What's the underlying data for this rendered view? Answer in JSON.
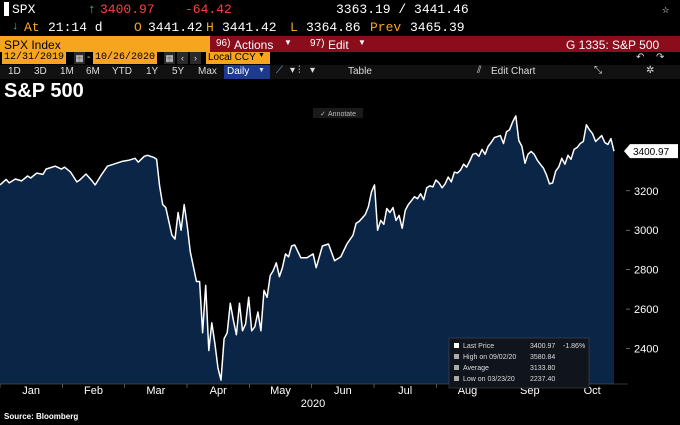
{
  "header": {
    "ticker": "SPX",
    "arrow": "↑",
    "last": "3400.97",
    "change": "-64.42",
    "range": "3363.19 / 3441.46",
    "at_label": "At",
    "time": "21:14 d",
    "o_label": "O",
    "open": "3441.42",
    "h_label": "H",
    "high": "3441.42",
    "l_label": "L",
    "low": "3364.86",
    "prev_label": "Prev",
    "prev": "3465.39"
  },
  "menubar": {
    "security": "SPX Index",
    "actions": "Actions",
    "actions_num": "96)",
    "edit": "Edit",
    "edit_num": "97)",
    "chart_label": "G 1335: S&P 500"
  },
  "dates": {
    "start": "12/31/2019",
    "end": "10/26/2020",
    "currency": "Local CCY"
  },
  "toolbar": {
    "periods": [
      "1D",
      "3D",
      "1M",
      "6M",
      "YTD",
      "1Y",
      "5Y",
      "Max"
    ],
    "frequency": "Daily",
    "table": "Table",
    "edit_chart": "Edit Chart"
  },
  "chart_title": "S&P 500",
  "annotate": "Annotate",
  "source": "Source: Bloomberg",
  "legend": {
    "rows": [
      {
        "label": "Last Price",
        "value": "3400.97",
        "extra": "-1.86%"
      },
      {
        "label": "High on 09/02/20",
        "value": "3580.84",
        "extra": ""
      },
      {
        "label": "Average",
        "value": "3133.80",
        "extra": ""
      },
      {
        "label": "Low on 03/23/20",
        "value": "2237.40",
        "extra": ""
      }
    ]
  },
  "colors": {
    "line": "#ffffff",
    "fill": "#0b2547",
    "background": "#000000",
    "menubar": "#8b0d1c",
    "accent": "#f7a51e"
  },
  "chart_data": {
    "type": "area",
    "title": "S&P 500",
    "xlabel": "2020",
    "ylabel": "",
    "ylim": [
      2220,
      3620
    ],
    "y_ticks": [
      2400,
      2600,
      2800,
      3000,
      3200
    ],
    "x_tick_labels": [
      "Jan",
      "Feb",
      "Mar",
      "Apr",
      "May",
      "Jun",
      "Jul",
      "Aug",
      "Sep",
      "Oct"
    ],
    "last_value_label": "3400.97",
    "grid": false,
    "legend_position": "bottom-right",
    "series": [
      {
        "name": "Last Price",
        "points": [
          [
            0,
            3230
          ],
          [
            2,
            3258
          ],
          [
            3,
            3240
          ],
          [
            5,
            3260
          ],
          [
            7,
            3250
          ],
          [
            9,
            3275
          ],
          [
            10,
            3265
          ],
          [
            12,
            3290
          ],
          [
            14,
            3283
          ],
          [
            15,
            3310
          ],
          [
            17,
            3320
          ],
          [
            18,
            3325
          ],
          [
            20,
            3310
          ],
          [
            21,
            3320
          ],
          [
            23,
            3295
          ],
          [
            25,
            3245
          ],
          [
            26,
            3255
          ],
          [
            28,
            3285
          ],
          [
            30,
            3250
          ],
          [
            31,
            3230
          ],
          [
            33,
            3280
          ],
          [
            35,
            3325
          ],
          [
            37,
            3335
          ],
          [
            39,
            3345
          ],
          [
            40,
            3350
          ],
          [
            42,
            3355
          ],
          [
            44,
            3365
          ],
          [
            45,
            3345
          ],
          [
            47,
            3375
          ],
          [
            48,
            3380
          ],
          [
            50,
            3370
          ],
          [
            51,
            3360
          ],
          [
            52,
            3225
          ],
          [
            53,
            3130
          ],
          [
            54,
            3115
          ],
          [
            56,
            2975
          ],
          [
            57,
            2955
          ],
          [
            58,
            3090
          ],
          [
            59,
            3000
          ],
          [
            60,
            3130
          ],
          [
            61,
            3020
          ],
          [
            62,
            2890
          ],
          [
            64,
            2740
          ],
          [
            65,
            2740
          ],
          [
            66,
            2480
          ],
          [
            67,
            2720
          ],
          [
            68,
            2390
          ],
          [
            69,
            2530
          ],
          [
            70,
            2425
          ],
          [
            71,
            2300
          ],
          [
            72,
            2240
          ],
          [
            73,
            2450
          ],
          [
            74,
            2480
          ],
          [
            75,
            2630
          ],
          [
            76,
            2545
          ],
          [
            77,
            2470
          ],
          [
            78,
            2630
          ],
          [
            79,
            2490
          ],
          [
            80,
            2525
          ],
          [
            81,
            2660
          ],
          [
            82,
            2490
          ],
          [
            83,
            2510
          ],
          [
            84,
            2585
          ],
          [
            85,
            2490
          ],
          [
            86,
            2695
          ],
          [
            87,
            2660
          ],
          [
            88,
            2770
          ],
          [
            89,
            2795
          ],
          [
            90,
            2835
          ],
          [
            91,
            2765
          ],
          [
            92,
            2810
          ],
          [
            93,
            2880
          ],
          [
            94,
            2865
          ],
          [
            95,
            2920
          ],
          [
            96,
            2925
          ],
          [
            98,
            2860
          ],
          [
            100,
            2860
          ],
          [
            102,
            2880
          ],
          [
            103,
            2810
          ],
          [
            105,
            2920
          ],
          [
            107,
            2930
          ],
          [
            109,
            2845
          ],
          [
            111,
            2865
          ],
          [
            113,
            2930
          ],
          [
            115,
            2975
          ],
          [
            116,
            3035
          ],
          [
            117,
            3045
          ],
          [
            119,
            3080
          ],
          [
            120,
            3120
          ],
          [
            121,
            3195
          ],
          [
            122,
            3230
          ],
          [
            123,
            3000
          ],
          [
            124,
            3050
          ],
          [
            125,
            3030
          ],
          [
            126,
            3110
          ],
          [
            127,
            3090
          ],
          [
            128,
            3115
          ],
          [
            129,
            3050
          ],
          [
            130,
            3075
          ],
          [
            131,
            3010
          ],
          [
            132,
            3100
          ],
          [
            133,
            3130
          ],
          [
            134,
            3150
          ],
          [
            135,
            3170
          ],
          [
            136,
            3160
          ],
          [
            137,
            3185
          ],
          [
            138,
            3155
          ],
          [
            139,
            3215
          ],
          [
            140,
            3225
          ],
          [
            141,
            3220
          ],
          [
            142,
            3255
          ],
          [
            143,
            3240
          ],
          [
            144,
            3215
          ],
          [
            145,
            3235
          ],
          [
            146,
            3270
          ],
          [
            147,
            3245
          ],
          [
            148,
            3295
          ],
          [
            149,
            3290
          ],
          [
            150,
            3305
          ],
          [
            151,
            3335
          ],
          [
            152,
            3320
          ],
          [
            153,
            3350
          ],
          [
            154,
            3385
          ],
          [
            155,
            3390
          ],
          [
            156,
            3375
          ],
          [
            157,
            3410
          ],
          [
            158,
            3385
          ],
          [
            159,
            3425
          ],
          [
            160,
            3445
          ],
          [
            161,
            3470
          ],
          [
            162,
            3475
          ],
          [
            163,
            3480
          ],
          [
            164,
            3440
          ],
          [
            165,
            3500
          ],
          [
            166,
            3510
          ],
          [
            167,
            3550
          ],
          [
            168,
            3580
          ],
          [
            169,
            3455
          ],
          [
            170,
            3425
          ],
          [
            171,
            3340
          ],
          [
            172,
            3385
          ],
          [
            173,
            3400
          ],
          [
            174,
            3385
          ],
          [
            175,
            3355
          ],
          [
            176,
            3335
          ],
          [
            177,
            3315
          ],
          [
            178,
            3280
          ],
          [
            179,
            3235
          ],
          [
            180,
            3240
          ],
          [
            181,
            3300
          ],
          [
            182,
            3320
          ],
          [
            183,
            3365
          ],
          [
            184,
            3335
          ],
          [
            185,
            3380
          ],
          [
            186,
            3360
          ],
          [
            187,
            3410
          ],
          [
            188,
            3420
          ],
          [
            189,
            3440
          ],
          [
            190,
            3450
          ],
          [
            191,
            3535
          ],
          [
            192,
            3510
          ],
          [
            193,
            3490
          ],
          [
            194,
            3450
          ],
          [
            195,
            3465
          ],
          [
            196,
            3480
          ],
          [
            197,
            3445
          ],
          [
            198,
            3435
          ],
          [
            199,
            3465
          ],
          [
            200,
            3401
          ]
        ]
      }
    ]
  }
}
